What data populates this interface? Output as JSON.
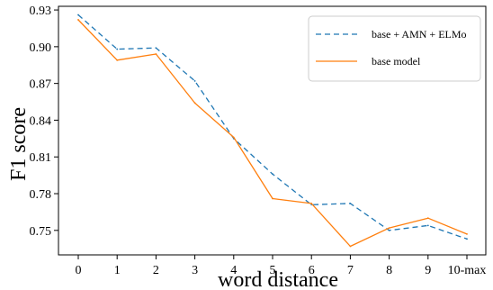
{
  "chart_data": {
    "type": "line",
    "title": "",
    "xlabel": "word distance",
    "ylabel": "F1 score",
    "categories": [
      "0",
      "1",
      "2",
      "3",
      "4",
      "5",
      "6",
      "7",
      "8",
      "9",
      "10-max"
    ],
    "ylim": [
      0.73,
      0.933
    ],
    "yticks": [
      0.75,
      0.78,
      0.81,
      0.84,
      0.87,
      0.9,
      0.93
    ],
    "ytick_labels": [
      "0.75",
      "0.78",
      "0.81",
      "0.84",
      "0.87",
      "0.90",
      "0.93"
    ],
    "grid": false,
    "legend_position": "top-right",
    "series": [
      {
        "name": "base + AMN + ELMo",
        "style": "dashed",
        "color": "#1f77b4",
        "values": [
          0.926,
          0.898,
          0.899,
          0.872,
          0.825,
          0.796,
          0.771,
          0.772,
          0.75,
          0.754,
          0.743
        ]
      },
      {
        "name": "base model",
        "style": "solid",
        "color": "#ff7f0e",
        "values": [
          0.922,
          0.889,
          0.894,
          0.854,
          0.826,
          0.776,
          0.772,
          0.737,
          0.752,
          0.76,
          0.747
        ]
      }
    ]
  }
}
